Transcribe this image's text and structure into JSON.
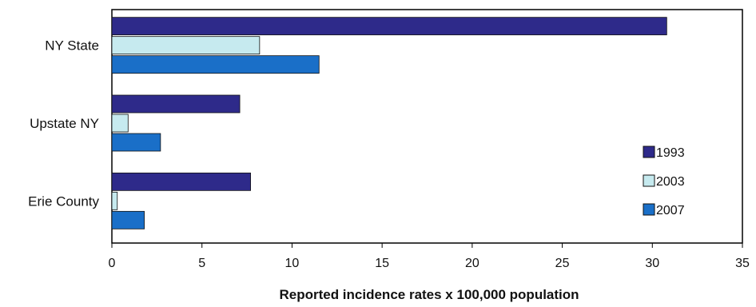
{
  "chart_data": {
    "type": "bar",
    "orientation": "horizontal",
    "categories": [
      "NY State",
      "Upstate NY",
      "Erie County"
    ],
    "series": [
      {
        "name": "1993",
        "values": [
          30.8,
          7.1,
          7.7
        ],
        "color": "#2e2a8a"
      },
      {
        "name": "2003",
        "values": [
          8.2,
          0.9,
          0.3
        ],
        "color": "#c6eaef"
      },
      {
        "name": "2007",
        "values": [
          11.5,
          2.7,
          1.8
        ],
        "color": "#1a6fc8"
      }
    ],
    "xlabel": "Reported incidence rates x 100,000 population",
    "ylabel": "",
    "title": "",
    "xlim": [
      0,
      35
    ],
    "xticks": [
      "0",
      "5",
      "10",
      "15",
      "20",
      "25",
      "30",
      "35"
    ],
    "grid": false,
    "legend_position": "right"
  }
}
